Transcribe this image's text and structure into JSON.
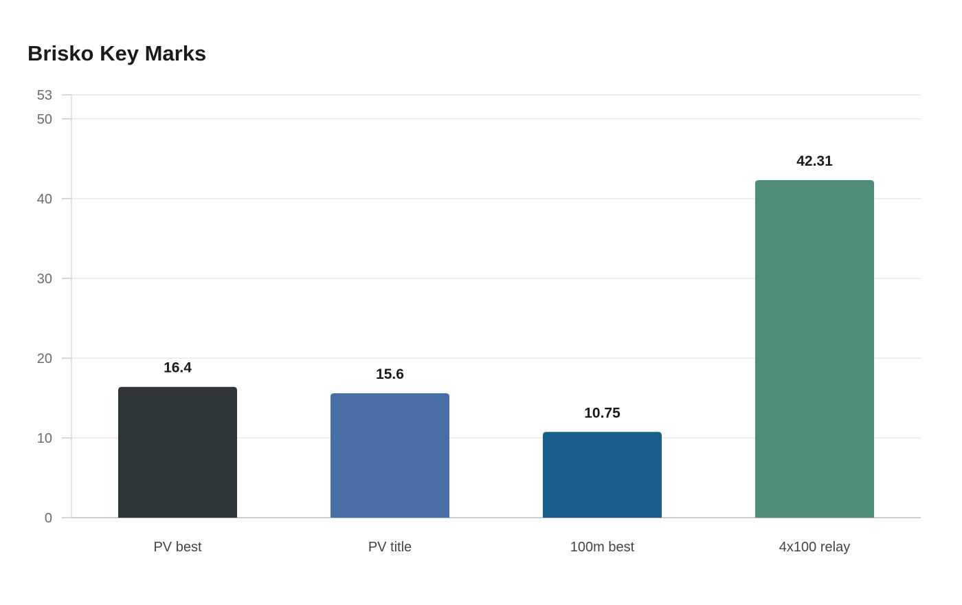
{
  "chart_data": {
    "type": "bar",
    "title": "Brisko Key Marks",
    "xlabel": "",
    "ylabel": "",
    "categories": [
      "PV best",
      "PV title",
      "100m best",
      "4x100 relay"
    ],
    "values": [
      16.4,
      15.6,
      10.75,
      42.31
    ],
    "value_labels": [
      "16.4",
      "15.6",
      "10.75",
      "42.31"
    ],
    "colors": [
      "#2d3538",
      "#4a6fa5",
      "#186089",
      "#4e8c7a"
    ],
    "ylim": [
      0,
      53
    ],
    "yticks": [
      0,
      10,
      20,
      30,
      40,
      50,
      53
    ],
    "grid": true,
    "legend": "none"
  }
}
